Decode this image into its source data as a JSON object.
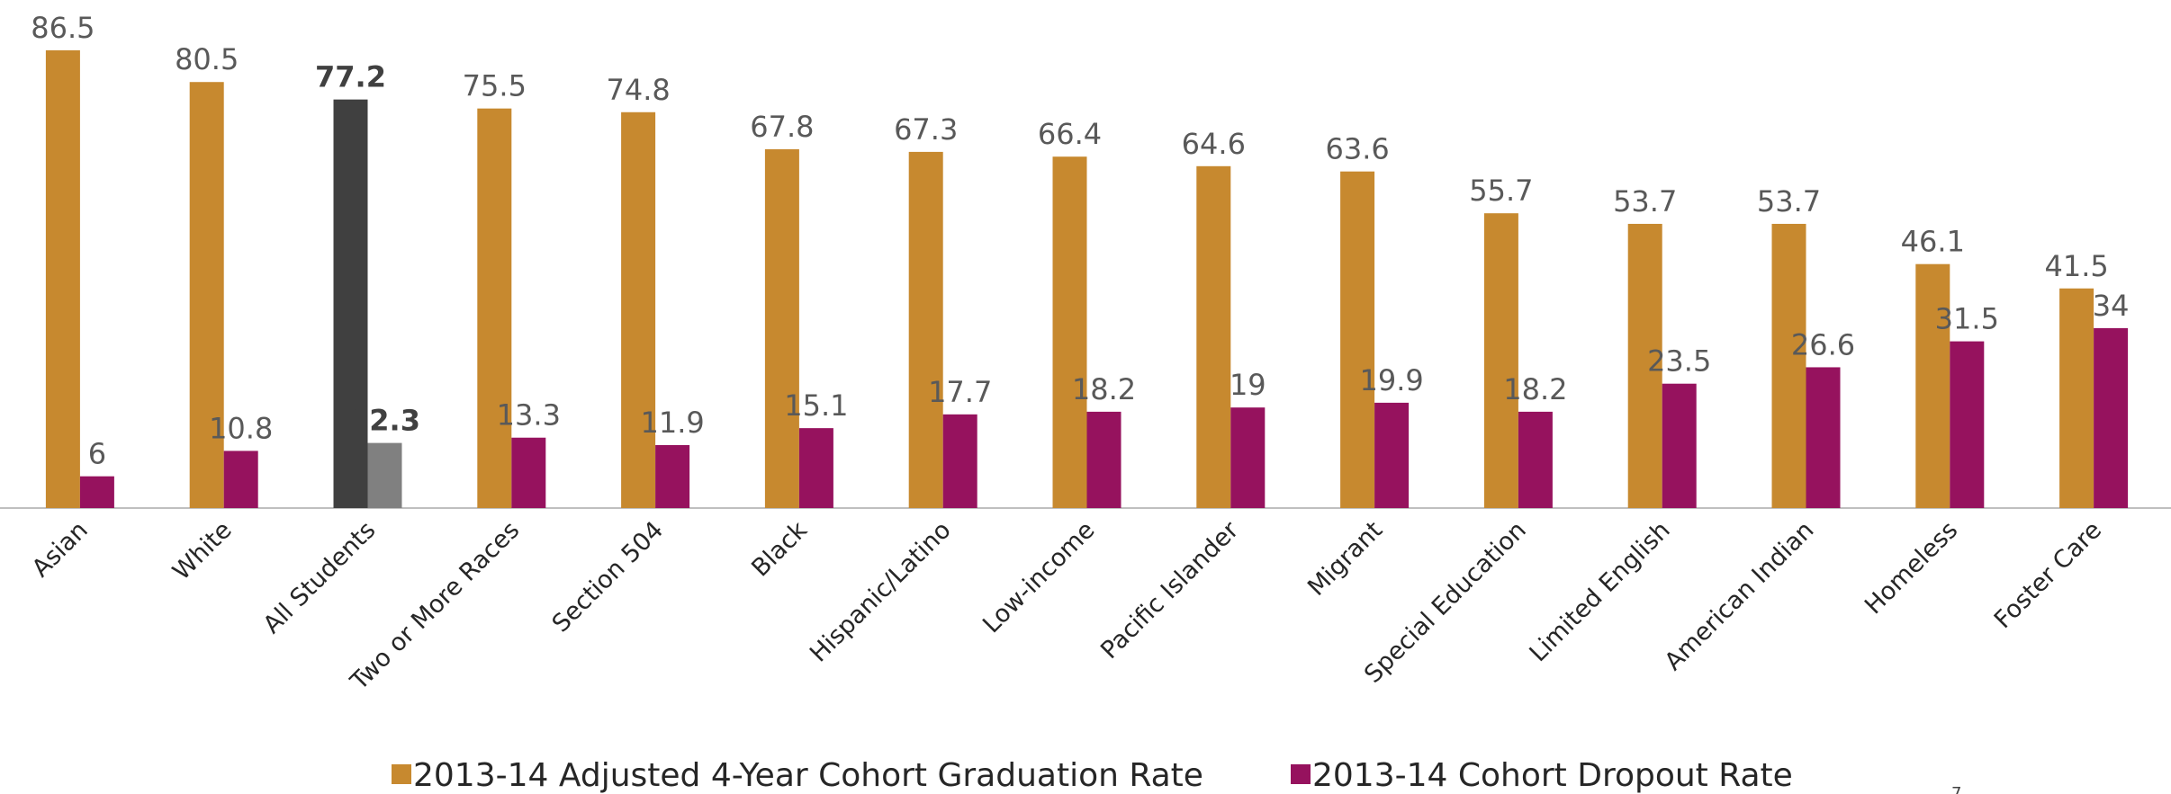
{
  "chart_data": {
    "type": "bar",
    "categories": [
      "Asian",
      "White",
      "All Students",
      "Two or More Races",
      "Section 504",
      "Black",
      "Hispanic/Latino",
      "Low-income",
      "Pacific Islander",
      "Migrant",
      "Special Education",
      "Limited English",
      "American Indian",
      "Homeless",
      "Foster Care"
    ],
    "series": [
      {
        "name": "2013-14 Adjusted 4-Year Cohort Graduation Rate",
        "color": "#c7892f",
        "colors": [
          "#c7892f",
          "#c7892f",
          "#404040",
          "#c7892f",
          "#c7892f",
          "#c7892f",
          "#c7892f",
          "#c7892f",
          "#c7892f",
          "#c7892f",
          "#c7892f",
          "#c7892f",
          "#c7892f",
          "#c7892f",
          "#c7892f"
        ],
        "values": [
          86.5,
          80.5,
          77.2,
          75.5,
          74.8,
          67.8,
          67.3,
          66.4,
          64.6,
          63.6,
          55.7,
          53.7,
          53.7,
          46.1,
          41.5
        ]
      },
      {
        "name": "2013-14 Cohort Dropout Rate",
        "color": "#96125e",
        "colors": [
          "#96125e",
          "#96125e",
          "#808080",
          "#96125e",
          "#96125e",
          "#96125e",
          "#96125e",
          "#96125e",
          "#96125e",
          "#96125e",
          "#96125e",
          "#96125e",
          "#96125e",
          "#96125e",
          "#96125e"
        ],
        "values": [
          6,
          10.8,
          12.3,
          13.3,
          11.9,
          15.1,
          17.7,
          18.2,
          19,
          19.9,
          18.2,
          23.5,
          26.6,
          31.5,
          34
        ]
      }
    ],
    "ylim": [
      0,
      96
    ],
    "legend": "bottom"
  },
  "footer": {
    "page_number": "7"
  }
}
